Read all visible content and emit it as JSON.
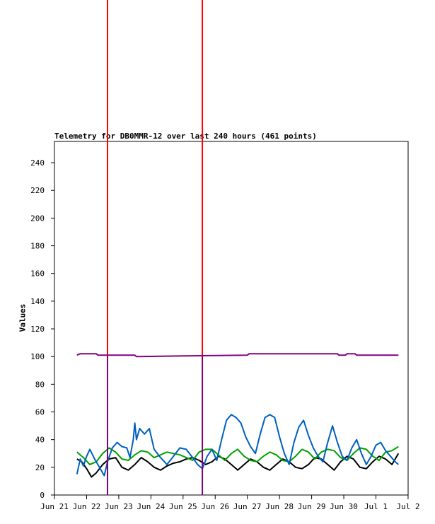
{
  "chart_data": {
    "type": "line",
    "title": "Telemetry for DB0MMR-12 over last 240 hours (461 points)",
    "xlabel": "",
    "ylabel": "Values",
    "ylim": [
      0,
      255
    ],
    "yticks": [
      0,
      20,
      40,
      60,
      80,
      100,
      120,
      140,
      160,
      180,
      200,
      220,
      240
    ],
    "xlim": [
      0,
      11.5
    ],
    "x_tick_labels": [
      "Jun 21",
      "Jun 22",
      "Jun 23",
      "Jun 24",
      "Jun 25",
      "Jun 26",
      "Jun 27",
      "Jun 28",
      "Jun 29",
      "Jun 30",
      "Jul 1",
      "Jul 2"
    ],
    "grid": false,
    "vertical_markers": [
      {
        "x": 1.65,
        "color": "#ff0000"
      },
      {
        "x": 4.6,
        "color": "#ff0000"
      }
    ],
    "series": [
      {
        "color": "#800080",
        "x": [
          0.7,
          0.8,
          1.3,
          1.35,
          1.6,
          2.5,
          2.55,
          6.0,
          6.05,
          8.8,
          8.85,
          9.05,
          9.1,
          9.35,
          9.4,
          10.7
        ],
        "values": [
          101,
          102,
          102,
          101,
          101,
          101,
          100,
          101,
          102,
          102,
          101,
          101,
          102,
          102,
          101,
          101
        ]
      },
      {
        "color": "#000000",
        "x": [
          0.7,
          0.85,
          1.0,
          1.15,
          1.3,
          1.5,
          1.7,
          1.9,
          2.1,
          2.3,
          2.5,
          2.7,
          2.9,
          3.1,
          3.3,
          3.5,
          3.7,
          3.9,
          4.1,
          4.3,
          4.5,
          4.7,
          4.9,
          5.1,
          5.3,
          5.5,
          5.7,
          5.9,
          6.1,
          6.3,
          6.5,
          6.7,
          6.9,
          7.1,
          7.3,
          7.5,
          7.7,
          7.9,
          8.1,
          8.3,
          8.5,
          8.7,
          8.9,
          9.1,
          9.3,
          9.5,
          9.7,
          9.9,
          10.1,
          10.3,
          10.5,
          10.7
        ],
        "values": [
          26,
          24,
          19,
          13,
          16,
          22,
          26,
          27,
          20,
          18,
          22,
          27,
          24,
          20,
          18,
          21,
          23,
          24,
          26,
          27,
          25,
          22,
          24,
          28,
          26,
          22,
          18,
          22,
          26,
          24,
          20,
          18,
          22,
          26,
          24,
          20,
          19,
          22,
          27,
          26,
          22,
          18,
          24,
          28,
          26,
          20,
          19,
          24,
          28,
          26,
          22,
          30
        ]
      },
      {
        "color": "#00a000",
        "x": [
          0.7,
          0.9,
          1.1,
          1.3,
          1.5,
          1.7,
          1.9,
          2.1,
          2.3,
          2.5,
          2.7,
          2.9,
          3.1,
          3.3,
          3.5,
          3.7,
          3.9,
          4.1,
          4.3,
          4.5,
          4.7,
          4.9,
          5.1,
          5.3,
          5.5,
          5.7,
          5.9,
          6.1,
          6.3,
          6.5,
          6.7,
          6.9,
          7.1,
          7.3,
          7.5,
          7.7,
          7.9,
          8.1,
          8.3,
          8.5,
          8.7,
          8.9,
          9.1,
          9.3,
          9.5,
          9.7,
          9.9,
          10.1,
          10.3,
          10.5,
          10.7
        ],
        "values": [
          31,
          27,
          22,
          24,
          30,
          34,
          31,
          26,
          25,
          29,
          32,
          31,
          27,
          29,
          31,
          30,
          29,
          27,
          25,
          31,
          33,
          33,
          29,
          25,
          30,
          33,
          28,
          25,
          24,
          28,
          31,
          29,
          25,
          24,
          28,
          33,
          31,
          26,
          31,
          33,
          32,
          27,
          25,
          30,
          34,
          33,
          28,
          25,
          31,
          32,
          35
        ]
      },
      {
        "color": "#0060c0",
        "x": [
          0.7,
          0.8,
          0.9,
          1.0,
          1.1,
          1.25,
          1.4,
          1.55,
          1.65,
          1.8,
          1.95,
          2.1,
          2.25,
          2.35,
          2.45,
          2.5,
          2.55,
          2.65,
          2.8,
          2.95,
          3.1,
          3.3,
          3.5,
          3.7,
          3.9,
          4.1,
          4.3,
          4.45,
          4.6,
          4.75,
          4.9,
          5.05,
          5.2,
          5.35,
          5.5,
          5.65,
          5.8,
          5.95,
          6.1,
          6.25,
          6.4,
          6.55,
          6.7,
          6.85,
          7.0,
          7.15,
          7.3,
          7.45,
          7.6,
          7.75,
          7.9,
          8.05,
          8.2,
          8.35,
          8.5,
          8.65,
          8.8,
          8.95,
          9.1,
          9.25,
          9.4,
          9.55,
          9.7,
          9.85,
          10.0,
          10.15,
          10.3,
          10.45,
          10.6,
          10.7
        ],
        "values": [
          15,
          26,
          21,
          28,
          33,
          26,
          20,
          14,
          24,
          34,
          38,
          35,
          34,
          27,
          40,
          52,
          40,
          48,
          44,
          48,
          33,
          27,
          22,
          28,
          34,
          33,
          27,
          22,
          19,
          28,
          33,
          25,
          40,
          54,
          58,
          56,
          52,
          42,
          35,
          30,
          44,
          56,
          58,
          56,
          42,
          30,
          22,
          38,
          49,
          54,
          43,
          34,
          28,
          24,
          38,
          50,
          38,
          28,
          25,
          34,
          40,
          30,
          22,
          28,
          36,
          38,
          32,
          28,
          24,
          22
        ]
      }
    ]
  }
}
